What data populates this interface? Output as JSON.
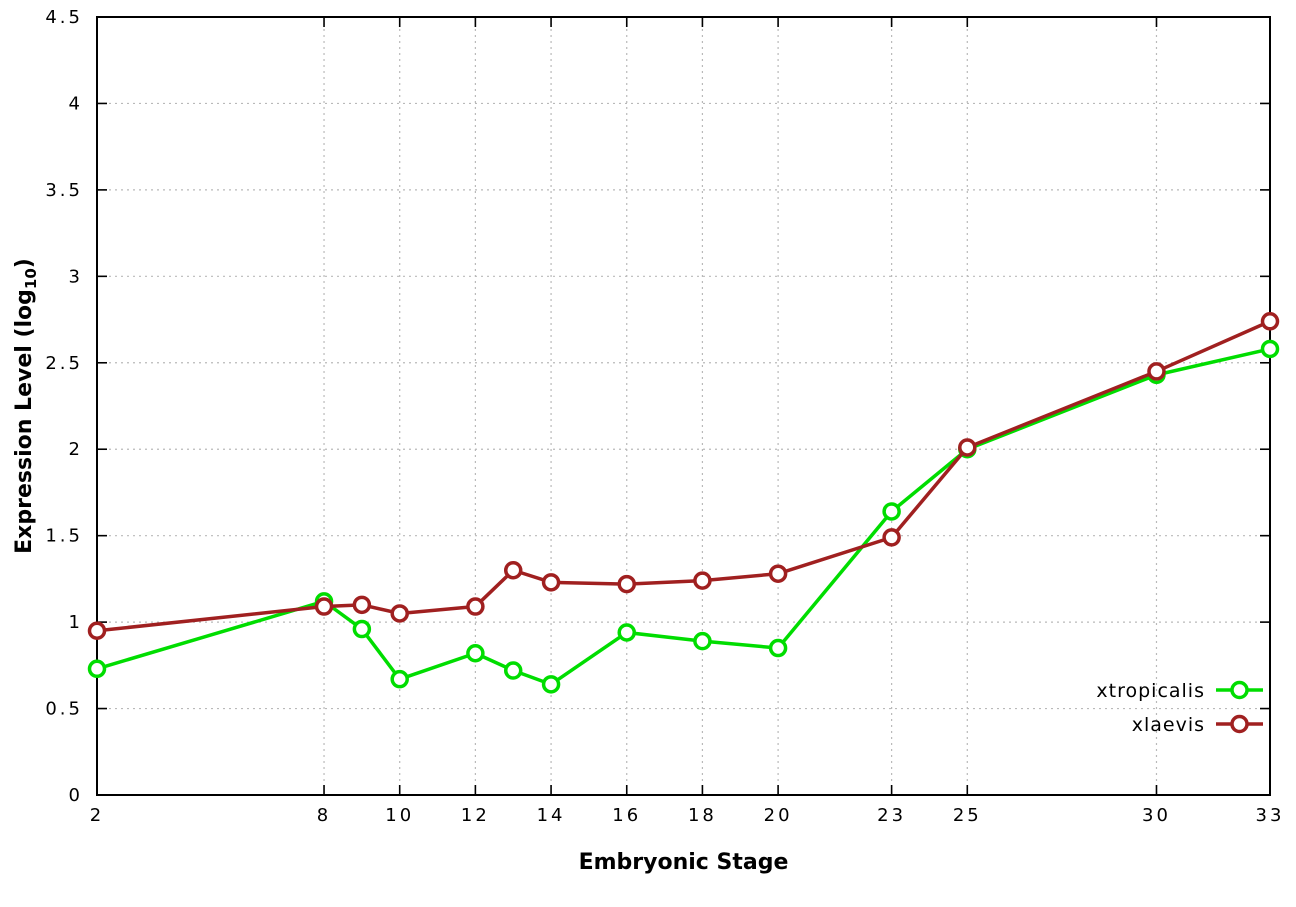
{
  "chart_data": {
    "type": "line",
    "xlabel": "Embryonic Stage",
    "ylabel": "Expression Level (log10)",
    "ylabel_parts": {
      "prefix": "Expression Level (log",
      "sub": "10",
      "suffix": ")"
    },
    "xlim": [
      2,
      33
    ],
    "ylim": [
      0,
      4.5
    ],
    "x_ticks": [
      2,
      8,
      10,
      12,
      14,
      16,
      18,
      20,
      23,
      25,
      30,
      33
    ],
    "y_ticks": [
      0,
      0.5,
      1,
      1.5,
      2,
      2.5,
      3,
      3.5,
      4,
      4.5
    ],
    "grid": true,
    "legend_position": "inside-bottom-right",
    "x": [
      2,
      8,
      9,
      10,
      12,
      13,
      14,
      16,
      18,
      20,
      23,
      25,
      30,
      33
    ],
    "series": [
      {
        "name": "xtropicalis",
        "color": "#00dd00",
        "values": [
          0.73,
          1.12,
          0.96,
          0.67,
          0.82,
          0.72,
          0.64,
          0.94,
          0.89,
          0.85,
          1.64,
          2.0,
          2.43,
          2.58
        ]
      },
      {
        "name": "xlaevis",
        "color": "#a02020",
        "values": [
          0.95,
          1.09,
          1.1,
          1.05,
          1.09,
          1.3,
          1.23,
          1.22,
          1.24,
          1.28,
          1.49,
          2.01,
          2.45,
          2.74
        ]
      }
    ]
  }
}
